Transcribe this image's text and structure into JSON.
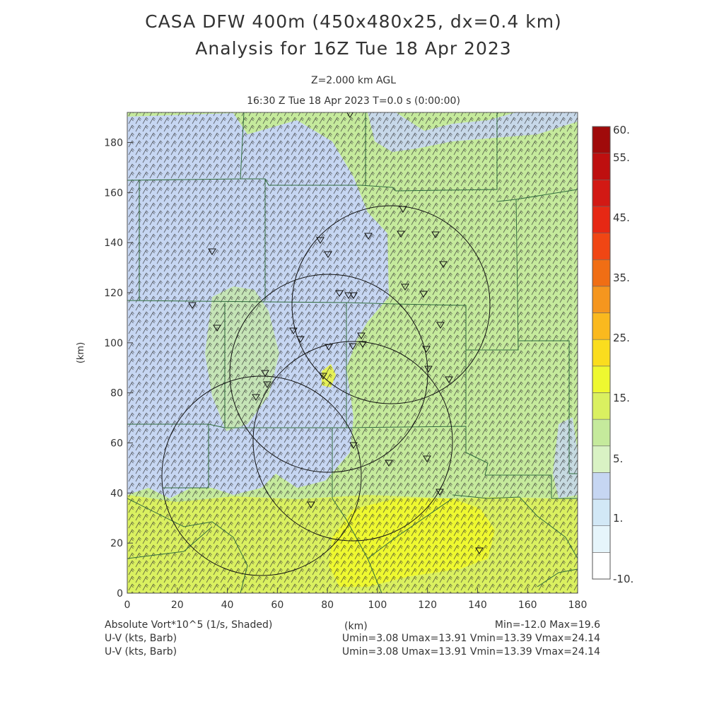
{
  "title_line1": "CASA DFW 400m (450x480x25, dx=0.4 km)",
  "title_line2": "Analysis for 16Z Tue 18 Apr 2023",
  "level_label": "Z=2.000 km AGL",
  "time_label": "16:30 Z Tue 18 Apr 2023    T=0.0 s (0:00:00)",
  "x_axis": {
    "label": "(km)",
    "ticks": [
      0,
      20,
      40,
      60,
      80,
      100,
      120,
      140,
      160,
      180
    ],
    "range": [
      0,
      180
    ]
  },
  "y_axis": {
    "label": "(km)",
    "ticks": [
      0,
      20,
      40,
      60,
      80,
      100,
      120,
      140,
      160,
      180
    ],
    "range": [
      0,
      192
    ]
  },
  "colorbar": {
    "labels": [
      "60.",
      "55.",
      "45.",
      "35.",
      "25.",
      "15.",
      "5.",
      "1.",
      "-10."
    ],
    "colors": [
      "#ffffff",
      "#e6f5fb",
      "#d2e8f6",
      "#c6d6f2",
      "#d9f2c4",
      "#c5ea9c",
      "#daf060",
      "#eef830",
      "#fadd1e",
      "#fab91e",
      "#f5961e",
      "#f06e14",
      "#f04614",
      "#e62814",
      "#d21914",
      "#be0f0f",
      "#a00a0a"
    ]
  },
  "footer": {
    "left": [
      "Absolute Vort*10^5 (1/s, Shaded)",
      "U-V (kts, Barb)",
      "U-V (kts, Barb)"
    ],
    "center_label": "(km)",
    "minmax": "Min=-12.0 Max=19.6",
    "uv_line1": "Umin=3.08 Umax=13.91 Vmin=13.39 Vmax=24.14",
    "uv_line2": "Umin=3.08 Umax=13.91 Vmin=13.39 Vmax=24.14"
  },
  "colors": {
    "land_green": "#c5ea9c",
    "pale_blue": "#c6d6f2",
    "yellow": "#daf060",
    "bright_yellow": "#eef830",
    "county_lines": "#2f6b3c"
  },
  "radar_markers_icon": "inverted-triangle-icon"
}
